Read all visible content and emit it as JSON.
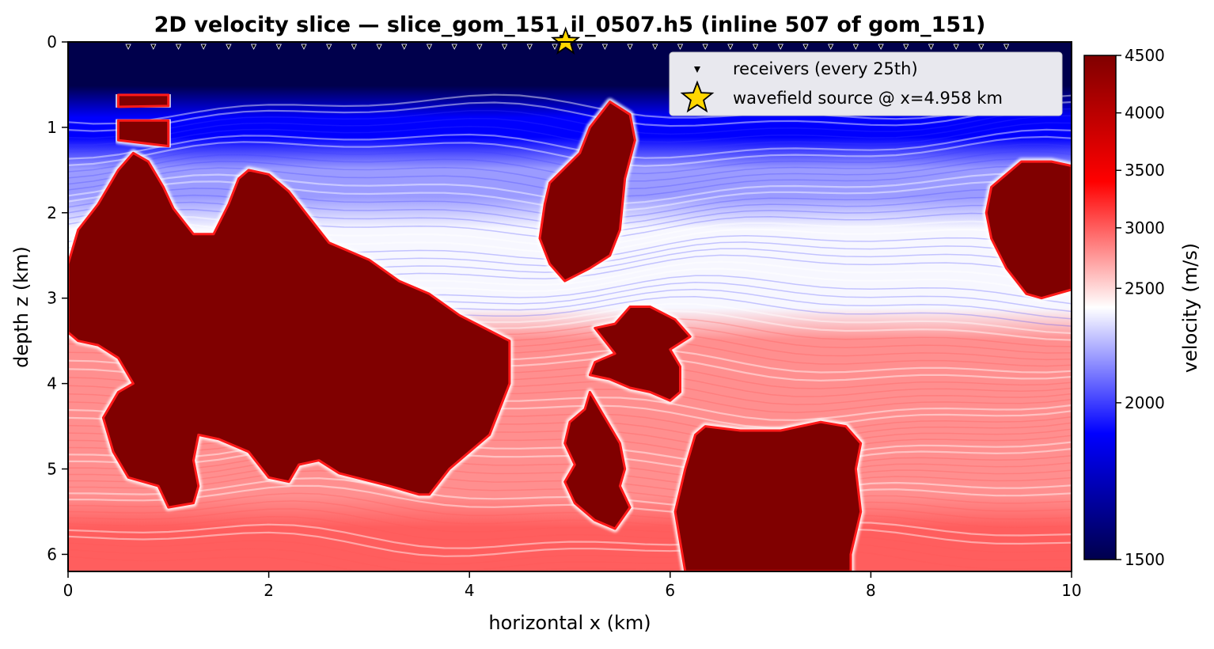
{
  "chart_data": {
    "type": "heatmap",
    "title": "2D velocity slice  —  slice_gom_151_il_0507.h5  (inline 507 of gom_151)",
    "xlabel": "horizontal x (km)",
    "ylabel": "depth z (km)",
    "xlim": [
      0,
      10
    ],
    "ylim": [
      6.2,
      0
    ],
    "x_ticks": [
      "0",
      "2",
      "4",
      "6",
      "8",
      "10"
    ],
    "y_ticks": [
      "0",
      "1",
      "2",
      "3",
      "4",
      "5",
      "6"
    ],
    "colorbar": {
      "label": "velocity (m/s)",
      "range": [
        1500,
        4500
      ],
      "ticks": [
        "1500",
        "2000",
        "2500",
        "3000",
        "3500",
        "4000",
        "4500"
      ],
      "colormap": "seismic",
      "colors": [
        "#00004c",
        "#0000ff",
        "#ffffff",
        "#ff0000",
        "#800000"
      ]
    },
    "legend": {
      "placement": "top-right",
      "entries": [
        {
          "label": "receivers (every 25th)",
          "marker": "triangle-down",
          "color": "#000000"
        },
        {
          "label": "wavefield source @ x=4.958 km",
          "marker": "star",
          "color": "#ffd700"
        }
      ]
    },
    "source": {
      "x": 4.958,
      "z": 0
    },
    "receiver_x": [
      0.6,
      0.85,
      1.1,
      1.35,
      1.6,
      1.85,
      2.1,
      2.35,
      2.6,
      2.85,
      3.1,
      3.35,
      3.6,
      3.85,
      4.1,
      4.35,
      4.6,
      4.85,
      5.1,
      5.35,
      5.6,
      5.85,
      6.1,
      6.35,
      6.6,
      6.85,
      7.1,
      7.35,
      7.6,
      7.85,
      8.1,
      8.35,
      8.6,
      8.85,
      9.1,
      9.35
    ],
    "background_layers": [
      {
        "z_top": 0.0,
        "z_bottom": 0.7,
        "velocity": 1500
      },
      {
        "z_top": 0.7,
        "z_bottom": 1.3,
        "velocity": 1900
      },
      {
        "z_top": 1.3,
        "z_bottom": 2.0,
        "velocity": 2200
      },
      {
        "z_top": 2.0,
        "z_bottom": 3.3,
        "velocity": 2400
      },
      {
        "z_top": 3.3,
        "z_bottom": 5.5,
        "velocity": 2800
      },
      {
        "z_top": 5.5,
        "z_bottom": 6.2,
        "velocity": 3000
      }
    ],
    "salt_velocity": 4500,
    "salt_bodies": [
      {
        "name": "salt-sliver-upper",
        "points": [
          [
            0.5,
            0.62
          ],
          [
            1.0,
            0.62
          ],
          [
            1.0,
            0.75
          ],
          [
            0.5,
            0.76
          ]
        ]
      },
      {
        "name": "salt-sliver-lower",
        "points": [
          [
            0.5,
            0.92
          ],
          [
            1.0,
            0.92
          ],
          [
            1.0,
            1.22
          ],
          [
            0.5,
            1.15
          ]
        ]
      },
      {
        "name": "salt-canopy-west",
        "points": [
          [
            0.0,
            2.6
          ],
          [
            0.1,
            2.2
          ],
          [
            0.3,
            1.9
          ],
          [
            0.5,
            1.5
          ],
          [
            0.65,
            1.3
          ],
          [
            0.8,
            1.4
          ],
          [
            0.95,
            1.7
          ],
          [
            1.05,
            1.95
          ],
          [
            1.25,
            2.25
          ],
          [
            1.45,
            2.25
          ],
          [
            1.6,
            1.9
          ],
          [
            1.7,
            1.6
          ],
          [
            1.8,
            1.5
          ],
          [
            2.0,
            1.55
          ],
          [
            2.2,
            1.75
          ],
          [
            2.4,
            2.05
          ],
          [
            2.6,
            2.35
          ],
          [
            2.8,
            2.45
          ],
          [
            3.0,
            2.55
          ],
          [
            3.3,
            2.8
          ],
          [
            3.6,
            2.95
          ],
          [
            3.9,
            3.2
          ],
          [
            4.15,
            3.35
          ],
          [
            4.4,
            3.5
          ],
          [
            4.4,
            4.0
          ],
          [
            4.2,
            4.6
          ],
          [
            4.0,
            4.8
          ],
          [
            3.8,
            5.0
          ],
          [
            3.6,
            5.3
          ],
          [
            3.5,
            5.3
          ],
          [
            3.2,
            5.2
          ],
          [
            2.7,
            5.05
          ],
          [
            2.5,
            4.9
          ],
          [
            2.3,
            4.95
          ],
          [
            2.2,
            5.15
          ],
          [
            2.0,
            5.1
          ],
          [
            1.8,
            4.8
          ],
          [
            1.5,
            4.65
          ],
          [
            1.3,
            4.6
          ],
          [
            1.25,
            4.9
          ],
          [
            1.3,
            5.2
          ],
          [
            1.25,
            5.4
          ],
          [
            1.0,
            5.45
          ],
          [
            0.9,
            5.2
          ],
          [
            0.6,
            5.1
          ],
          [
            0.45,
            4.8
          ],
          [
            0.35,
            4.4
          ],
          [
            0.5,
            4.1
          ],
          [
            0.65,
            4.0
          ],
          [
            0.5,
            3.7
          ],
          [
            0.3,
            3.55
          ],
          [
            0.1,
            3.5
          ],
          [
            0.0,
            3.4
          ]
        ]
      },
      {
        "name": "salt-diapir-central",
        "points": [
          [
            5.4,
            0.7
          ],
          [
            5.6,
            0.85
          ],
          [
            5.65,
            1.15
          ],
          [
            5.55,
            1.6
          ],
          [
            5.5,
            2.2
          ],
          [
            5.4,
            2.5
          ],
          [
            5.2,
            2.65
          ],
          [
            4.95,
            2.8
          ],
          [
            4.8,
            2.6
          ],
          [
            4.7,
            2.3
          ],
          [
            4.75,
            1.9
          ],
          [
            4.8,
            1.65
          ],
          [
            5.1,
            1.3
          ],
          [
            5.2,
            1.0
          ]
        ]
      },
      {
        "name": "salt-pod-upper",
        "points": [
          [
            5.6,
            3.1
          ],
          [
            5.8,
            3.1
          ],
          [
            6.05,
            3.25
          ],
          [
            6.2,
            3.45
          ],
          [
            6.0,
            3.6
          ],
          [
            6.1,
            3.8
          ],
          [
            6.1,
            4.1
          ],
          [
            6.0,
            4.2
          ],
          [
            5.8,
            4.1
          ],
          [
            5.6,
            4.05
          ],
          [
            5.4,
            3.95
          ],
          [
            5.2,
            3.9
          ],
          [
            5.25,
            3.75
          ],
          [
            5.45,
            3.65
          ],
          [
            5.35,
            3.5
          ],
          [
            5.25,
            3.35
          ],
          [
            5.45,
            3.3
          ]
        ]
      },
      {
        "name": "salt-pod-lower",
        "points": [
          [
            5.2,
            4.1
          ],
          [
            5.35,
            4.4
          ],
          [
            5.5,
            4.7
          ],
          [
            5.55,
            5.0
          ],
          [
            5.5,
            5.2
          ],
          [
            5.6,
            5.45
          ],
          [
            5.45,
            5.7
          ],
          [
            5.25,
            5.6
          ],
          [
            5.05,
            5.4
          ],
          [
            4.95,
            5.15
          ],
          [
            5.05,
            4.95
          ],
          [
            4.95,
            4.7
          ],
          [
            5.0,
            4.45
          ],
          [
            5.15,
            4.3
          ]
        ]
      },
      {
        "name": "salt-block-southeast",
        "points": [
          [
            6.35,
            4.5
          ],
          [
            6.7,
            4.55
          ],
          [
            7.1,
            4.55
          ],
          [
            7.5,
            4.45
          ],
          [
            7.75,
            4.5
          ],
          [
            7.9,
            4.7
          ],
          [
            7.85,
            5.0
          ],
          [
            7.9,
            5.5
          ],
          [
            7.8,
            6.0
          ],
          [
            7.8,
            6.2
          ],
          [
            6.15,
            6.2
          ],
          [
            6.05,
            5.5
          ],
          [
            6.15,
            5.0
          ],
          [
            6.25,
            4.6
          ]
        ]
      },
      {
        "name": "salt-diapir-east",
        "points": [
          [
            9.5,
            1.4
          ],
          [
            9.8,
            1.4
          ],
          [
            10.0,
            1.45
          ],
          [
            10.0,
            2.9
          ],
          [
            9.7,
            3.0
          ],
          [
            9.55,
            2.95
          ],
          [
            9.35,
            2.65
          ],
          [
            9.2,
            2.3
          ],
          [
            9.15,
            2.0
          ],
          [
            9.2,
            1.7
          ]
        ]
      }
    ]
  }
}
